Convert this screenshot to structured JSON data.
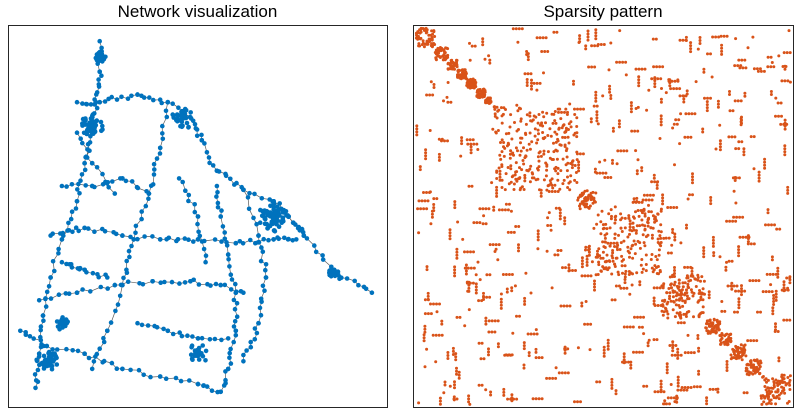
{
  "panels": {
    "network": {
      "title": "Network visualization"
    },
    "sparsity": {
      "title": "Sparsity pattern"
    }
  },
  "colors": {
    "node": "#0072BD",
    "edge": "#5a5a5a",
    "spy": "#D95319",
    "frame": "#262626"
  },
  "matrix": {
    "blocks": [
      {
        "start": 0.0,
        "end": 0.05,
        "density": 0.85
      },
      {
        "start": 0.05,
        "end": 0.085,
        "density": 0.55
      },
      {
        "start": 0.085,
        "end": 0.11,
        "density": 0.8
      },
      {
        "start": 0.11,
        "end": 0.135,
        "density": 0.8
      },
      {
        "start": 0.135,
        "end": 0.16,
        "density": 0.8
      },
      {
        "start": 0.16,
        "end": 0.185,
        "density": 0.8
      },
      {
        "start": 0.185,
        "end": 0.2,
        "density": 0.8
      },
      {
        "start": 0.2,
        "end": 0.43,
        "density": 0.45
      },
      {
        "start": 0.43,
        "end": 0.48,
        "density": 0.8
      },
      {
        "start": 0.48,
        "end": 0.655,
        "density": 0.55
      },
      {
        "start": 0.655,
        "end": 0.77,
        "density": 0.8
      },
      {
        "start": 0.77,
        "end": 0.81,
        "density": 0.8
      },
      {
        "start": 0.81,
        "end": 0.84,
        "density": 0.8
      },
      {
        "start": 0.84,
        "end": 0.88,
        "density": 0.8
      },
      {
        "start": 0.88,
        "end": 0.92,
        "density": 0.8
      },
      {
        "start": 0.92,
        "end": 1.0,
        "density": 0.75
      }
    ]
  }
}
